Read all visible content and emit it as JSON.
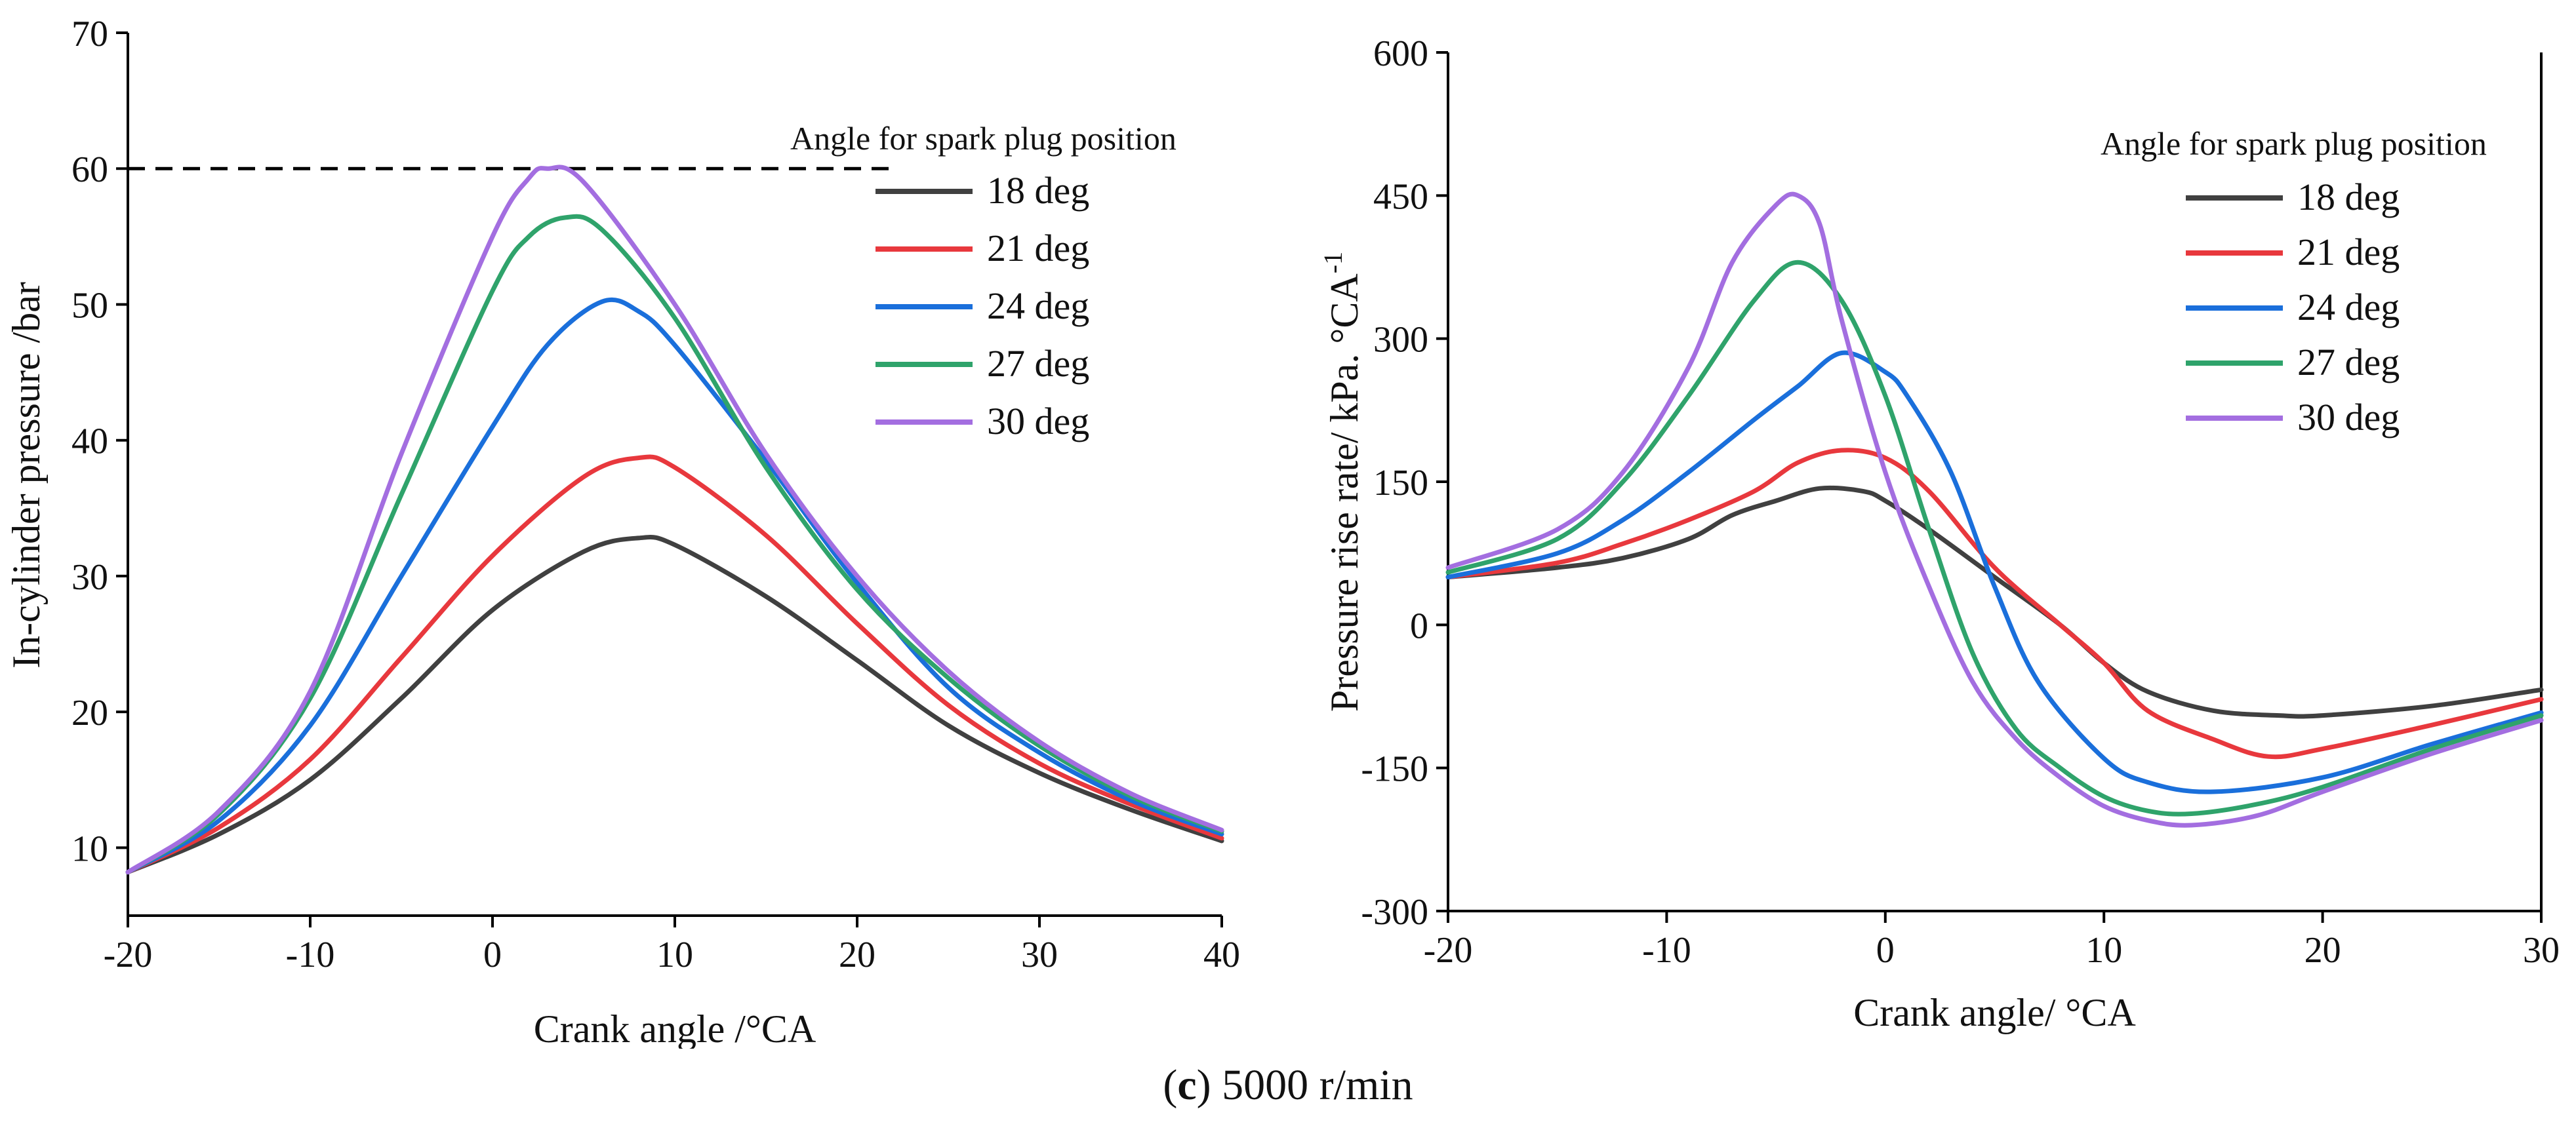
{
  "figure": {
    "caption_label": "c",
    "caption_text": " 5000 r/min"
  },
  "chart_data": [
    {
      "type": "line",
      "title": "",
      "xlabel": "Crank angle /°CA",
      "ylabel": "In-cylinder pressure /bar",
      "xlim": [
        -20,
        40
      ],
      "ylim": [
        5,
        70
      ],
      "xticks": [
        -20,
        -10,
        0,
        10,
        20,
        30,
        40
      ],
      "yticks": [
        10,
        20,
        30,
        40,
        50,
        60,
        70
      ],
      "legend_title": "Angle for spark plug position",
      "legend_position": "top-right",
      "reference_line": {
        "y": 60,
        "x_from": -20,
        "x_to": 22,
        "style": "dashed"
      },
      "series": [
        {
          "name": "18 deg",
          "color": "#404040",
          "x": [
            -20,
            -15,
            -10,
            -5,
            0,
            5,
            8,
            10,
            15,
            20,
            25,
            30,
            35,
            40
          ],
          "y": [
            8.2,
            11,
            15,
            21,
            27.5,
            31.8,
            32.8,
            32.3,
            28.5,
            23.8,
            19,
            15.5,
            12.8,
            10.5
          ]
        },
        {
          "name": "21 deg",
          "color": "#e8383d",
          "x": [
            -20,
            -15,
            -10,
            -5,
            0,
            5,
            8,
            10,
            15,
            20,
            25,
            30,
            35,
            40
          ],
          "y": [
            8.2,
            11.5,
            16.5,
            24,
            31.5,
            37.3,
            38.7,
            38,
            33,
            26.5,
            20.5,
            16.2,
            13.2,
            10.7
          ]
        },
        {
          "name": "24 deg",
          "color": "#1a6fdb",
          "x": [
            -20,
            -15,
            -10,
            -5,
            0,
            3,
            6,
            8,
            10,
            15,
            20,
            25,
            30,
            35,
            40
          ],
          "y": [
            8.2,
            12,
            19,
            30,
            41,
            47,
            50.2,
            49.5,
            47,
            38.5,
            29.5,
            21.8,
            17,
            13.5,
            11
          ]
        },
        {
          "name": "27 deg",
          "color": "#2fa36b",
          "x": [
            -20,
            -15,
            -10,
            -5,
            0,
            2,
            4,
            6,
            10,
            15,
            20,
            25,
            30,
            35,
            40
          ],
          "y": [
            8.2,
            12.5,
            21,
            36,
            51,
            55,
            56.4,
            55.5,
            49,
            38,
            29,
            22.5,
            17.5,
            13.8,
            11.2
          ]
        },
        {
          "name": "30 deg",
          "color": "#a36ee0",
          "x": [
            -20,
            -15,
            -10,
            -5,
            0,
            2,
            3,
            5,
            10,
            15,
            20,
            25,
            30,
            35,
            40
          ],
          "y": [
            8.2,
            12.7,
            21.5,
            39,
            55,
            59.3,
            60,
            59,
            50,
            39,
            30,
            23,
            17.8,
            14,
            11.3
          ]
        }
      ]
    },
    {
      "type": "line",
      "title": "",
      "xlabel": "Crank angle/ °CA",
      "ylabel": "Pressure rise rate/ kPa. °CA",
      "ylabel_superscript": "-1",
      "xlim": [
        -20,
        30
      ],
      "ylim": [
        -300,
        600
      ],
      "xticks": [
        -20,
        -10,
        0,
        10,
        20,
        30
      ],
      "yticks": [
        -300,
        -150,
        0,
        150,
        300,
        450,
        600
      ],
      "legend_title": "Angle for spark plug position",
      "legend_position": "top-right",
      "series": [
        {
          "name": "18 deg",
          "color": "#404040",
          "x": [
            -20,
            -15,
            -12,
            -9,
            -7,
            -5,
            -3,
            -1,
            0,
            2,
            5,
            8,
            10,
            12,
            15,
            18,
            20,
            25,
            30
          ],
          "y": [
            50,
            60,
            70,
            90,
            115,
            130,
            143,
            140,
            130,
            100,
            50,
            0,
            -40,
            -70,
            -90,
            -95,
            -95,
            -85,
            -68
          ]
        },
        {
          "name": "21 deg",
          "color": "#e8383d",
          "x": [
            -20,
            -15,
            -12,
            -9,
            -6,
            -4,
            -2,
            0,
            2,
            5,
            8,
            10,
            12,
            15,
            17.5,
            20,
            25,
            30
          ],
          "y": [
            50,
            65,
            85,
            110,
            140,
            170,
            183,
            175,
            140,
            60,
            0,
            -40,
            -90,
            -120,
            -138,
            -130,
            -105,
            -78
          ]
        },
        {
          "name": "24 deg",
          "color": "#1a6fdb",
          "x": [
            -20,
            -15,
            -12,
            -9,
            -6,
            -4,
            -2,
            0,
            1,
            3,
            5,
            7,
            10,
            12,
            15,
            20,
            25,
            30
          ],
          "y": [
            50,
            75,
            110,
            160,
            215,
            250,
            285,
            265,
            240,
            160,
            40,
            -60,
            -140,
            -165,
            -175,
            -160,
            -125,
            -92
          ]
        },
        {
          "name": "27 deg",
          "color": "#2fa36b",
          "x": [
            -20,
            -15,
            -12,
            -9,
            -6,
            -4,
            -2,
            0,
            2,
            4,
            6,
            8,
            10,
            12,
            14,
            17,
            20,
            25,
            30
          ],
          "y": [
            55,
            90,
            150,
            240,
            340,
            380,
            340,
            240,
            100,
            -30,
            -110,
            -150,
            -180,
            -195,
            -198,
            -188,
            -170,
            -130,
            -95
          ]
        },
        {
          "name": "30 deg",
          "color": "#a36ee0",
          "x": [
            -20,
            -15,
            -12,
            -9,
            -7,
            -5,
            -4,
            -3,
            -2,
            0,
            2,
            4,
            6,
            8,
            10,
            12,
            14,
            17,
            20,
            25,
            30
          ],
          "y": [
            60,
            100,
            160,
            270,
            380,
            440,
            450,
            420,
            320,
            160,
            40,
            -60,
            -120,
            -160,
            -190,
            -205,
            -210,
            -200,
            -175,
            -135,
            -100
          ]
        }
      ]
    }
  ]
}
